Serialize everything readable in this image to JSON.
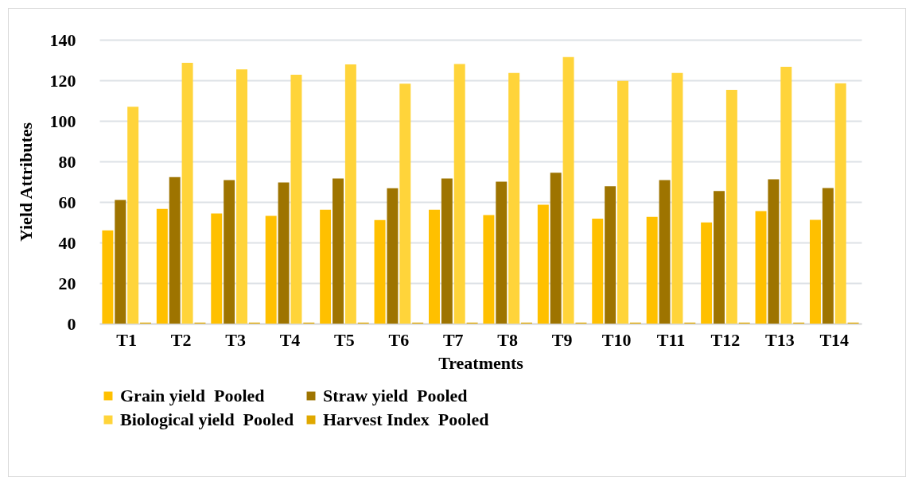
{
  "chart_data": {
    "type": "bar",
    "xlabel": "Treatments",
    "ylabel": "Yield Attributes",
    "categories": [
      "T1",
      "T2",
      "T3",
      "T4",
      "T5",
      "T6",
      "T7",
      "T8",
      "T9",
      "T10",
      "T11",
      "T12",
      "T13",
      "T14"
    ],
    "series": [
      {
        "name": "Grain yield  Pooled",
        "color": "#ffc000",
        "values": [
          46.0,
          56.6,
          54.3,
          53.1,
          56.2,
          51.1,
          56.2,
          53.5,
          58.6,
          51.8,
          52.6,
          49.9,
          55.5,
          51.2
        ]
      },
      {
        "name": "Straw yield  Pooled",
        "color": "#9e7400",
        "values": [
          61.0,
          72.3,
          70.8,
          69.6,
          71.6,
          66.8,
          71.6,
          70.0,
          74.4,
          67.7,
          70.8,
          65.4,
          71.2,
          66.9
        ]
      },
      {
        "name": "Biological yield  Pooled",
        "color": "#ffd43a",
        "values": [
          107.0,
          128.6,
          125.4,
          122.7,
          127.8,
          118.3,
          128.0,
          123.6,
          131.5,
          119.7,
          123.6,
          115.3,
          126.7,
          118.5
        ]
      },
      {
        "name": "Harvest Index  Pooled",
        "color": "#e0a800",
        "values": [
          0.5,
          0.5,
          0.5,
          0.5,
          0.5,
          0.5,
          0.5,
          0.5,
          0.5,
          0.5,
          0.5,
          0.5,
          0.5,
          0.5
        ]
      }
    ],
    "ylim": [
      0,
      140
    ],
    "yticks": [
      0,
      20,
      40,
      60,
      80,
      100,
      120,
      140
    ],
    "grid": "y",
    "legend": "bottom"
  }
}
